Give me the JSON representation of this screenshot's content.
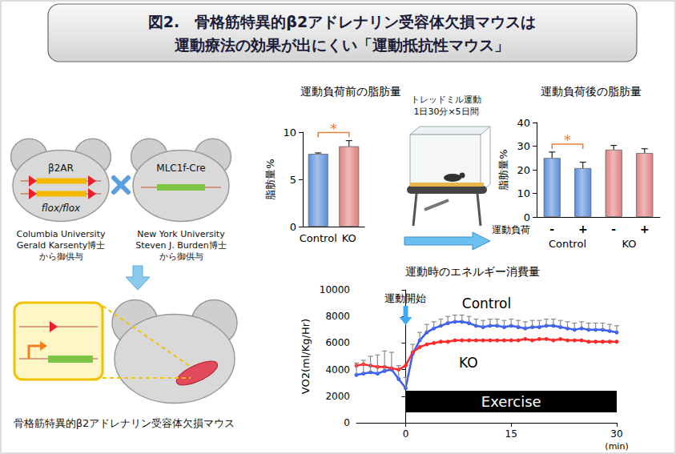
{
  "header": {
    "title": [
      "図2.　骨格筋特異的β2アドレナリン受容体欠損マウスは",
      "運動療法の効果が出にくい「運動抵抗性マウス」"
    ]
  },
  "diagram": {
    "mice": [
      {
        "gene": "β2AR",
        "genotype": "flox/flox",
        "source": [
          "Columbia University",
          "Gerald Karsenty博士",
          "から御供与"
        ]
      },
      {
        "gene": "MLC1f-Cre",
        "source": [
          "New York University",
          "Steven J. Burden博士",
          "から御供与"
        ]
      }
    ],
    "result_label": "骨格筋特異的β2アドレナリン受容体欠損マウス"
  },
  "protocol": {
    "label": "トレッドミル運動",
    "detail": "1日30分×5日間"
  },
  "chart_data": [
    {
      "type": "bar",
      "title": "運動負荷前の脂肪量",
      "categories": [
        "Control",
        "KO"
      ],
      "values": [
        7.7,
        8.5
      ],
      "errors": [
        0.1,
        0.6
      ],
      "colors": [
        "#5b8fd9",
        "#e08080"
      ],
      "ylabel": "脂肪量%",
      "ylim": [
        0,
        10
      ],
      "yticks": [
        0,
        5,
        10
      ],
      "grid": false,
      "significance": [
        {
          "between": [
            0,
            1
          ],
          "label": "*"
        }
      ]
    },
    {
      "type": "bar",
      "title": "運動負荷後の脂肪量",
      "categories": [
        "-",
        "+",
        "-",
        "+"
      ],
      "groups": [
        "Control",
        "KO"
      ],
      "xlabel": "運動負荷",
      "values": [
        25,
        20.7,
        28.5,
        27.1
      ],
      "errors": [
        2.5,
        2.5,
        1.8,
        1.8
      ],
      "colors": [
        "#5b8fd9",
        "#5b8fd9",
        "#e08080",
        "#e08080"
      ],
      "ylabel": "脂肪量%",
      "ylim": [
        0,
        40
      ],
      "yticks": [
        0,
        10,
        20,
        30,
        40
      ],
      "grid": false,
      "significance": [
        {
          "between": [
            0,
            1
          ],
          "label": "*"
        }
      ]
    },
    {
      "type": "line",
      "title": "運動時のエネルギー消費量",
      "x": [
        -7,
        -6,
        -5,
        -4,
        -3,
        -2,
        -1,
        0,
        1,
        2,
        3,
        4,
        5,
        6,
        7,
        8,
        9,
        10,
        11,
        12,
        13,
        14,
        15,
        16,
        17,
        18,
        19,
        20,
        21,
        22,
        23,
        24,
        25,
        26,
        27,
        28,
        29,
        30
      ],
      "series": [
        {
          "name": "Control",
          "color": "#3a5ff5",
          "marker": "circle",
          "values": [
            3600,
            3700,
            3800,
            3700,
            3900,
            4000,
            3300,
            2600,
            5200,
            6200,
            6800,
            7100,
            7300,
            7500,
            7600,
            7600,
            7500,
            7300,
            7200,
            7300,
            7300,
            7200,
            7300,
            7200,
            7100,
            7200,
            7200,
            7300,
            7300,
            7200,
            7100,
            7000,
            7100,
            7000,
            7000,
            7000,
            6900,
            6800
          ],
          "errors": [
            900,
            1000,
            1200,
            1400,
            1500,
            1300,
            1000,
            800,
            700,
            600,
            600,
            500,
            500,
            500,
            500,
            500,
            500,
            500,
            500,
            500,
            500,
            500,
            500,
            500,
            500,
            500,
            500,
            500,
            500,
            500,
            500,
            500,
            500,
            500,
            500,
            500,
            500,
            500
          ]
        },
        {
          "name": "KO",
          "color": "#ff2a2a",
          "marker": "circle",
          "values": [
            4300,
            4400,
            4300,
            4200,
            4200,
            4100,
            4000,
            4300,
            5300,
            5700,
            5900,
            6000,
            6100,
            6100,
            6200,
            6200,
            6200,
            6200,
            6200,
            6200,
            6200,
            6200,
            6200,
            6200,
            6300,
            6200,
            6300,
            6300,
            6200,
            6300,
            6200,
            6200,
            6200,
            6100,
            6100,
            6100,
            6100,
            6100
          ]
        }
      ],
      "ylabel": "VO2(ml/Kg/Hr)",
      "xunit": "(min)",
      "xlim": [
        -7,
        30
      ],
      "xticks": [
        0,
        15,
        30
      ],
      "ylim": [
        0,
        10000
      ],
      "yticks": [
        0,
        2000,
        4000,
        6000,
        8000,
        10000
      ],
      "grid": false,
      "annotations": [
        {
          "text": "運動開始",
          "x": 0
        }
      ],
      "exercise": {
        "label": "Exercise",
        "x": [
          0,
          30
        ]
      }
    }
  ]
}
